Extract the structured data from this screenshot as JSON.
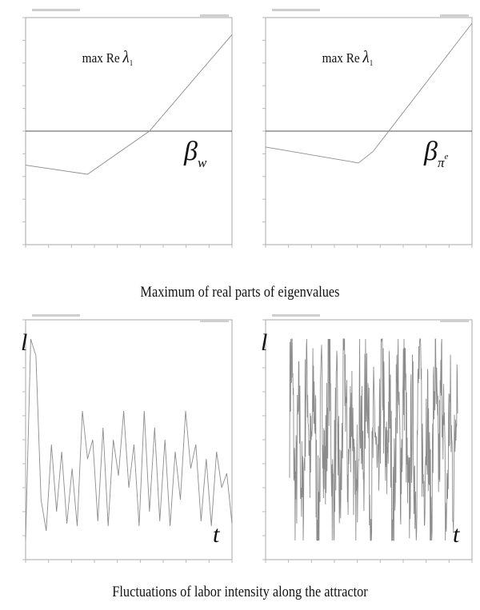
{
  "captions": {
    "top": "Maximum of real parts of eigenvalues",
    "bottom": "Fluctuations of labor intensity along the attractor"
  },
  "chart_data": [
    {
      "type": "line",
      "id": "eig-left",
      "annotation": {
        "prefix": "max  Re",
        "symbol": "λ",
        "sub": "1"
      },
      "param_label": {
        "symbol": "β",
        "sub": "w"
      },
      "xlim": [
        0,
        100
      ],
      "ylim": [
        -1,
        1
      ],
      "zero_line": 0,
      "series": [
        {
          "x": [
            0,
            30,
            60,
            100
          ],
          "values": [
            -0.3,
            -0.38,
            0.0,
            0.85
          ]
        }
      ]
    },
    {
      "type": "line",
      "id": "eig-right",
      "annotation": {
        "prefix": "max  Re",
        "symbol": "λ",
        "sub": "1"
      },
      "param_label": {
        "symbol": "β",
        "sub": "π",
        "sup": "e"
      },
      "xlim": [
        0,
        100
      ],
      "ylim": [
        -1,
        1
      ],
      "zero_line": 0,
      "series": [
        {
          "x": [
            0,
            45,
            52,
            100
          ],
          "values": [
            -0.14,
            -0.28,
            -0.18,
            0.95
          ]
        }
      ]
    },
    {
      "type": "line",
      "id": "labor-left",
      "ylabel": "l",
      "xlabel": "t",
      "xlim": [
        0,
        100
      ],
      "ylim": [
        0,
        1
      ],
      "series": [
        {
          "x": [
            0,
            2.5,
            5,
            7.5,
            10,
            12.5,
            15,
            17.5,
            20,
            22.5,
            25,
            27.5,
            30,
            32.5,
            35,
            37.5,
            40,
            42.5,
            45,
            47.5,
            50,
            52.5,
            55,
            57.5,
            60,
            62.5,
            65,
            67.5,
            70,
            72.5,
            75,
            77.5,
            80,
            82.5,
            85,
            87.5,
            90,
            92.5,
            95,
            97.5,
            100
          ],
          "values": [
            0.08,
            0.92,
            0.85,
            0.25,
            0.12,
            0.48,
            0.2,
            0.45,
            0.15,
            0.38,
            0.14,
            0.62,
            0.42,
            0.5,
            0.16,
            0.55,
            0.14,
            0.5,
            0.35,
            0.62,
            0.3,
            0.48,
            0.14,
            0.62,
            0.2,
            0.55,
            0.16,
            0.5,
            0.14,
            0.45,
            0.25,
            0.62,
            0.38,
            0.48,
            0.16,
            0.42,
            0.14,
            0.45,
            0.3,
            0.36,
            0.15
          ]
        }
      ]
    },
    {
      "type": "line",
      "id": "labor-right",
      "ylabel": "l",
      "xlabel": "t",
      "xlim": [
        0,
        100
      ],
      "ylim": [
        0,
        1
      ],
      "series": [
        {
          "x": [],
          "values": [],
          "note": "dense chaotic oscillation"
        }
      ]
    }
  ]
}
